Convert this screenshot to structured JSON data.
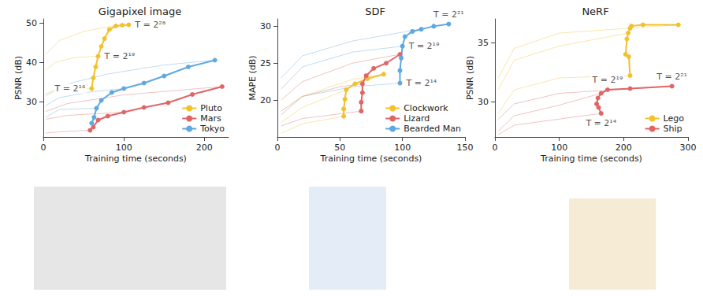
{
  "chart_data": [
    {
      "type": "line",
      "title": "Gigapixel image",
      "x_label": "Training time (seconds)",
      "y_label": "PSNR (dB)",
      "xlim": [
        0,
        230
      ],
      "xticks": [
        0,
        100,
        200
      ],
      "ylim": [
        21,
        51
      ],
      "yticks": [
        30,
        40,
        50
      ],
      "grid": false,
      "legend": "lower right",
      "series": [
        {
          "name": "Pluto",
          "color": "#f2c12e",
          "marker": "circle",
          "line_style": "solid",
          "x": [
            60,
            62,
            65,
            68,
            72,
            76,
            82,
            90,
            98,
            106
          ],
          "values": [
            33.3,
            36.0,
            38.8,
            41.5,
            44.0,
            46.0,
            48.3,
            49.2,
            49.4,
            49.5
          ]
        },
        {
          "name": "Mars",
          "color": "#e06666",
          "marker": "circle",
          "line_style": "solid",
          "x": [
            58,
            62,
            68,
            80,
            100,
            125,
            155,
            185,
            222
          ],
          "values": [
            22.7,
            23.5,
            25.3,
            26.3,
            27.3,
            28.5,
            29.7,
            31.8,
            33.8
          ]
        },
        {
          "name": "Tokyo",
          "color": "#5fa8e0",
          "marker": "circle",
          "line_style": "solid",
          "x": [
            60,
            63,
            66,
            72,
            85,
            100,
            125,
            150,
            180,
            213
          ],
          "values": [
            24.5,
            26.0,
            28.3,
            30.3,
            32.3,
            33.3,
            34.7,
            36.5,
            38.8,
            40.5
          ]
        }
      ],
      "training_curves": [
        {
          "dataset": "Pluto",
          "x": [
            3,
            20,
            50,
            80,
            106
          ],
          "values": [
            42.0,
            45.5,
            47.8,
            49.0,
            49.5
          ]
        },
        {
          "dataset": "Pluto",
          "x": [
            3,
            15,
            40,
            68
          ],
          "values": [
            38.0,
            40.0,
            41.2,
            41.5
          ]
        },
        {
          "dataset": "Pluto",
          "x": [
            3,
            15,
            60
          ],
          "values": [
            32.0,
            33.0,
            33.3
          ]
        },
        {
          "dataset": "Tokyo",
          "x": [
            3,
            30,
            80,
            150,
            213
          ],
          "values": [
            31.5,
            34.5,
            37.0,
            39.3,
            40.5
          ]
        },
        {
          "dataset": "Tokyo",
          "x": [
            3,
            20,
            60,
            100
          ],
          "values": [
            29.0,
            31.0,
            32.5,
            33.3
          ]
        },
        {
          "dataset": "Tokyo",
          "x": [
            3,
            20,
            66
          ],
          "values": [
            26.0,
            28.0,
            28.3
          ]
        },
        {
          "dataset": "Mars",
          "x": [
            3,
            30,
            100,
            222
          ],
          "values": [
            27.5,
            29.5,
            31.7,
            33.8
          ]
        },
        {
          "dataset": "Mars",
          "x": [
            3,
            30,
            100
          ],
          "values": [
            25.5,
            26.5,
            27.3
          ]
        },
        {
          "dataset": "Mars",
          "x": [
            3,
            20,
            58
          ],
          "values": [
            22.0,
            22.3,
            22.7
          ]
        }
      ],
      "annotations": [
        {
          "text": "T = 2²⁸",
          "x": 106,
          "y": 49.5
        },
        {
          "text": "T = 2¹⁹",
          "x": 68,
          "y": 41.5
        },
        {
          "text": "T = 2¹⁶",
          "x": 60,
          "y": 33.3
        }
      ]
    },
    {
      "type": "line",
      "title": "SDF",
      "x_label": "Training time (seconds)",
      "y_label": "MAPE (dB)",
      "xlim": [
        0,
        150
      ],
      "xticks": [
        0,
        50,
        100,
        150
      ],
      "ylim": [
        15,
        31
      ],
      "yticks": [
        20,
        25,
        30
      ],
      "grid": false,
      "legend": "lower right",
      "series": [
        {
          "name": "Clockwork",
          "color": "#f2c12e",
          "marker": "circle",
          "line_style": "solid",
          "x": [
            53,
            53,
            54,
            55,
            62,
            72,
            85
          ],
          "values": [
            17.8,
            18.8,
            20.1,
            21.4,
            22.2,
            22.9,
            23.5
          ]
        },
        {
          "name": "Lizard",
          "color": "#e06666",
          "marker": "circle",
          "line_style": "solid",
          "x": [
            67,
            67,
            68,
            68,
            71,
            77,
            87,
            98
          ],
          "values": [
            18.5,
            19.7,
            21.0,
            22.2,
            23.3,
            24.3,
            25.0,
            26.2
          ]
        },
        {
          "name": "Bearded Man",
          "color": "#5fa8e0",
          "marker": "circle",
          "line_style": "solid",
          "x": [
            98,
            98,
            99,
            100,
            102,
            108,
            115,
            125,
            137
          ],
          "values": [
            22.3,
            24.0,
            25.7,
            27.3,
            28.6,
            29.3,
            29.6,
            30.0,
            30.3
          ]
        }
      ],
      "training_curves": [
        {
          "dataset": "Bearded Man",
          "x": [
            3,
            20,
            60,
            137
          ],
          "values": [
            23.0,
            26.0,
            28.0,
            30.3
          ]
        },
        {
          "dataset": "Bearded Man",
          "x": [
            3,
            20,
            60,
            100
          ],
          "values": [
            21.5,
            24.5,
            26.5,
            27.3
          ]
        },
        {
          "dataset": "Bearded Man",
          "x": [
            3,
            20,
            60,
            98
          ],
          "values": [
            18.5,
            20.5,
            21.8,
            22.3
          ]
        },
        {
          "dataset": "Lizard",
          "x": [
            3,
            20,
            60,
            98
          ],
          "values": [
            20.0,
            22.5,
            25.0,
            26.2
          ]
        },
        {
          "dataset": "Lizard",
          "x": [
            3,
            20,
            50,
            68
          ],
          "values": [
            18.0,
            20.5,
            21.8,
            22.2
          ]
        },
        {
          "dataset": "Lizard",
          "x": [
            3,
            20,
            67
          ],
          "values": [
            16.5,
            17.5,
            18.5
          ]
        },
        {
          "dataset": "Clockwork",
          "x": [
            3,
            20,
            60,
            85
          ],
          "values": [
            18.5,
            20.5,
            22.8,
            23.5
          ]
        },
        {
          "dataset": "Clockwork",
          "x": [
            3,
            20,
            55
          ],
          "values": [
            17.0,
            19.0,
            21.4
          ]
        },
        {
          "dataset": "Clockwork",
          "x": [
            3,
            20,
            53
          ],
          "values": [
            15.5,
            16.8,
            17.8
          ]
        }
      ],
      "annotations": [
        {
          "text": "T = 2²¹",
          "x": 137,
          "y": 30.3
        },
        {
          "text": "T = 2¹⁹",
          "x": 100,
          "y": 27.3
        },
        {
          "text": "T = 2¹⁴",
          "x": 98,
          "y": 22.3
        }
      ]
    },
    {
      "type": "line",
      "title": "NeRF",
      "x_label": "Training time (seconds)",
      "y_label": "PSNR (dB)",
      "xlim": [
        0,
        300
      ],
      "xticks": [
        0,
        100,
        200,
        300
      ],
      "ylim": [
        27,
        37
      ],
      "yticks": [
        30,
        35
      ],
      "grid": false,
      "legend": "lower right",
      "series": [
        {
          "name": "Lego",
          "color": "#f2c12e",
          "marker": "circle",
          "line_style": "solid",
          "x": [
            210,
            208,
            203,
            205,
            207,
            210,
            212,
            230,
            285
          ],
          "values": [
            32.2,
            33.8,
            34.0,
            35.3,
            35.8,
            36.2,
            36.4,
            36.5,
            36.5
          ]
        },
        {
          "name": "Ship",
          "color": "#e06666",
          "marker": "circle",
          "line_style": "solid",
          "x": [
            165,
            161,
            158,
            160,
            165,
            175,
            210,
            275
          ],
          "values": [
            29.0,
            29.5,
            29.8,
            30.3,
            30.7,
            31.0,
            31.1,
            31.3
          ]
        }
      ],
      "training_curves": [
        {
          "dataset": "Lego",
          "x": [
            5,
            30,
            100,
            285
          ],
          "values": [
            32.0,
            34.5,
            35.8,
            36.5
          ]
        },
        {
          "dataset": "Lego",
          "x": [
            5,
            30,
            100,
            207
          ],
          "values": [
            31.0,
            33.5,
            34.7,
            35.8
          ]
        },
        {
          "dataset": "Lego",
          "x": [
            5,
            30,
            100,
            210
          ],
          "values": [
            29.0,
            31.0,
            32.0,
            32.2
          ]
        },
        {
          "dataset": "Ship",
          "x": [
            5,
            30,
            100,
            275
          ],
          "values": [
            28.5,
            29.8,
            30.7,
            31.3
          ]
        },
        {
          "dataset": "Ship",
          "x": [
            5,
            30,
            100,
            165
          ],
          "values": [
            27.5,
            28.8,
            29.7,
            30.7
          ]
        },
        {
          "dataset": "Ship",
          "x": [
            5,
            30,
            165
          ],
          "values": [
            27.2,
            28.0,
            29.0
          ]
        }
      ],
      "annotations": [
        {
          "text": "T = 2²¹",
          "x": 275,
          "y": 31.3
        },
        {
          "text": "T = 2¹⁹",
          "x": 175,
          "y": 31.0
        },
        {
          "text": "T = 2¹⁴",
          "x": 165,
          "y": 29.0
        }
      ]
    }
  ]
}
